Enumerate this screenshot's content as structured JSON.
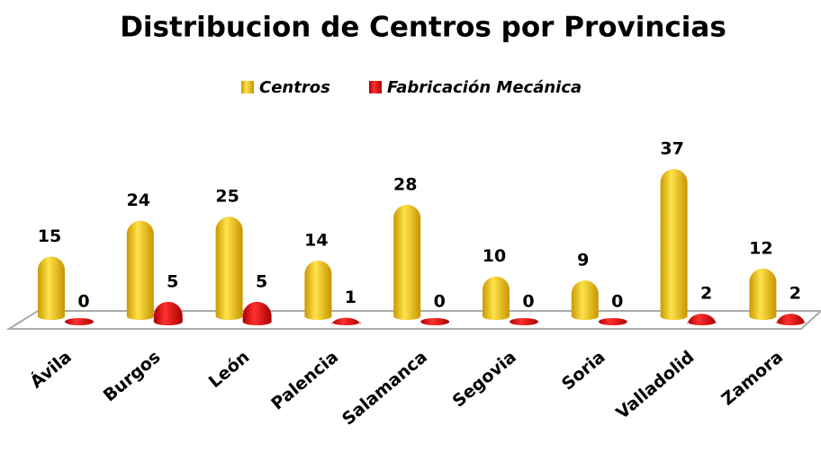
{
  "chart_data": {
    "type": "bar",
    "title": "Distribucion de Centros por Provincias",
    "categories": [
      "Ávila",
      "Burgos",
      "León",
      "Palencia",
      "Salamanca",
      "Segovia",
      "Soria",
      "Valladolid",
      "Zamora"
    ],
    "series": [
      {
        "name": "Centros",
        "color": "#f2c100",
        "values": [
          15,
          24,
          25,
          14,
          28,
          10,
          9,
          37,
          12
        ]
      },
      {
        "name": "Fabricación Mecánica",
        "color": "#e60000",
        "values": [
          0,
          5,
          5,
          1,
          0,
          0,
          0,
          2,
          2
        ]
      }
    ],
    "legend": "top"
  }
}
